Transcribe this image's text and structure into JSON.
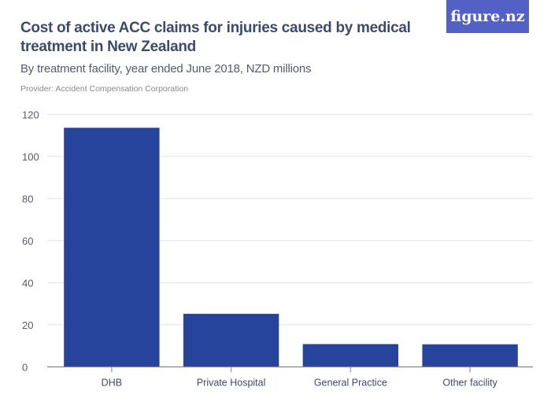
{
  "title": "Cost of active ACC claims for injuries caused by medical treatment in New Zealand",
  "subtitle": "By treatment facility, year ended June 2018, NZD millions",
  "provider": "Provider: Accident Compensation Corporation",
  "logo": "figure.nz",
  "colors": {
    "bar": "#27449c",
    "logo_bg": "#5360c6",
    "grid": "#e4e4e4"
  },
  "chart_data": {
    "type": "bar",
    "title": "Cost of active ACC claims for injuries caused by medical treatment in New Zealand",
    "subtitle": "By treatment facility, year ended June 2018, NZD millions",
    "categories": [
      "DHB",
      "Private Hospital",
      "General Practice",
      "Other facility"
    ],
    "values": [
      113.6,
      25.2,
      10.8,
      10.7
    ],
    "xlabel": "",
    "ylabel": "",
    "ylim": [
      0,
      120
    ],
    "yticks": [
      0,
      20,
      40,
      60,
      80,
      100,
      120
    ],
    "grid": true
  }
}
